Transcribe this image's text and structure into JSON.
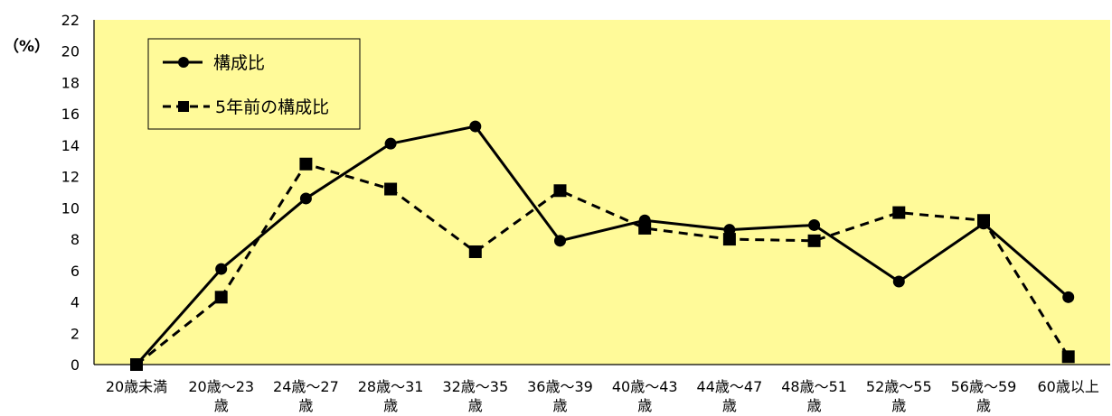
{
  "chart_data": {
    "type": "line",
    "unit_label": "（%）",
    "categories": [
      [
        "20歳未満"
      ],
      [
        "20歳～23",
        "歳"
      ],
      [
        "24歳～27",
        "歳"
      ],
      [
        "28歳～31",
        "歳"
      ],
      [
        "32歳～35",
        "歳"
      ],
      [
        "36歳～39",
        "歳"
      ],
      [
        "40歳～43",
        "歳"
      ],
      [
        "44歳～47",
        "歳"
      ],
      [
        "48歳～51",
        "歳"
      ],
      [
        "52歳～55",
        "歳"
      ],
      [
        "56歳～59",
        "歳"
      ],
      [
        "60歳以上"
      ]
    ],
    "ylim": [
      0,
      22
    ],
    "yticks": [
      0,
      2,
      4,
      6,
      8,
      10,
      12,
      14,
      16,
      18,
      20,
      22
    ],
    "grid": false,
    "legend_position": "top-left",
    "plot_background": "#FFFA99",
    "series": [
      {
        "name": "構成比",
        "style": "solid",
        "marker": "circle",
        "color": "#000000",
        "values": [
          0,
          6.1,
          10.6,
          14.1,
          15.2,
          7.9,
          9.2,
          8.6,
          8.9,
          5.3,
          9.0,
          4.3
        ]
      },
      {
        "name": "5年前の構成比",
        "style": "dashed",
        "marker": "square",
        "color": "#000000",
        "values": [
          0,
          4.3,
          12.8,
          11.2,
          7.2,
          11.1,
          8.7,
          8.0,
          7.9,
          9.7,
          9.2,
          0.5
        ]
      }
    ]
  }
}
